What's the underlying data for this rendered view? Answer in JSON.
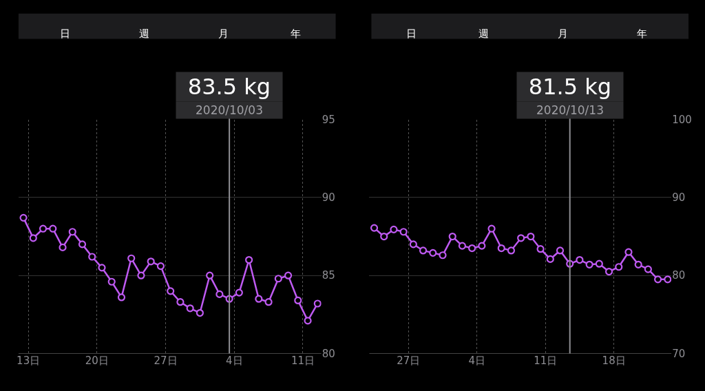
{
  "chart_data": [
    {
      "type": "line",
      "annotations": [
        "日",
        "週",
        "月",
        "年",
        "83.5 kg"
      ],
      "x": [
        "2020-09-12T12:00",
        "2020-09-13T12:00",
        "2020-09-14T12:00",
        "2020-09-15T12:00",
        "2020-09-16T12:00",
        "2020-09-17T12:00",
        "2020-09-18T12:00",
        "2020-09-19T12:00",
        "2020-09-20T12:00",
        "2020-09-21T12:00",
        "2020-09-22T12:00",
        "2020-09-23T12:00",
        "2020-09-24T12:00",
        "2020-09-25T12:00",
        "2020-09-26T12:00",
        "2020-09-27T12:00",
        "2020-09-28T12:00",
        "2020-09-29T12:00",
        "2020-09-30T12:00",
        "2020-10-01T12:00",
        "2020-10-02T12:00",
        "2020-10-03T12:00",
        "2020-10-04T12:00",
        "2020-10-05T12:00",
        "2020-10-06T12:00",
        "2020-10-07T12:00",
        "2020-10-08T12:00",
        "2020-10-09T12:00",
        "2020-10-10T12:00",
        "2020-10-11T12:00",
        "2020-10-12T12:00"
      ],
      "series": [
        {
          "color": "#bf5af2",
          "values": [
            88.7,
            87.4,
            88.0,
            88.0,
            86.8,
            87.8,
            87.0,
            86.2,
            85.5,
            84.6,
            83.6,
            86.1,
            85.0,
            85.9,
            85.6,
            84.0,
            83.3,
            82.9,
            82.6,
            85.0,
            83.8,
            83.5,
            83.9,
            86.0,
            83.5,
            83.3,
            84.8,
            85.0,
            83.4,
            82.1,
            83.2
          ]
        }
      ],
      "xlim": [
        "2020-09-12",
        "2020-10-12T21:00"
      ],
      "xticks": [
        {
          "value": "2020-09-13",
          "label": "13日"
        },
        {
          "value": "2020-09-20",
          "label": "20日"
        },
        {
          "value": "2020-09-27",
          "label": "27日"
        },
        {
          "value": "2020-10-04",
          "label": "4日"
        },
        {
          "value": "2020-10-11",
          "label": "11日"
        }
      ],
      "ylim": [
        80,
        95
      ],
      "yticks": [
        80,
        85,
        90,
        95
      ],
      "ref_lines": [
        {
          "axis": "x",
          "value": "2020-10-03T12:00",
          "label": "2020/10/03",
          "color": "#8e8e93"
        }
      ],
      "grid": true,
      "marker": "circle",
      "line_style": "solid"
    },
    {
      "type": "line",
      "annotations": [
        "日",
        "週",
        "月",
        "年",
        "81.5 kg"
      ],
      "x": [
        "2020-09-23T12:00",
        "2020-09-24T12:00",
        "2020-09-25T12:00",
        "2020-09-26T12:00",
        "2020-09-27T12:00",
        "2020-09-28T12:00",
        "2020-09-29T12:00",
        "2020-09-30T12:00",
        "2020-10-01T12:00",
        "2020-10-02T12:00",
        "2020-10-03T12:00",
        "2020-10-04T12:00",
        "2020-10-05T12:00",
        "2020-10-06T12:00",
        "2020-10-07T12:00",
        "2020-10-08T12:00",
        "2020-10-09T12:00",
        "2020-10-10T12:00",
        "2020-10-11T12:00",
        "2020-10-12T12:00",
        "2020-10-13T12:00",
        "2020-10-14T12:00",
        "2020-10-15T12:00",
        "2020-10-16T12:00",
        "2020-10-17T12:00",
        "2020-10-18T12:00",
        "2020-10-19T12:00",
        "2020-10-20T12:00",
        "2020-10-21T12:00",
        "2020-10-22T12:00",
        "2020-10-23T12:00"
      ],
      "series": [
        {
          "color": "#bf5af2",
          "values": [
            86.1,
            85.0,
            85.9,
            85.6,
            84.0,
            83.2,
            82.9,
            82.6,
            85.0,
            83.8,
            83.5,
            83.8,
            86.0,
            83.5,
            83.2,
            84.8,
            85.0,
            83.4,
            82.1,
            83.2,
            81.5,
            82.0,
            81.4,
            81.5,
            80.5,
            81.1,
            83.0,
            81.4,
            80.8,
            79.5,
            79.5
          ]
        }
      ],
      "xlim": [
        "2020-09-23",
        "2020-10-23T21:00"
      ],
      "xticks": [
        {
          "value": "2020-09-27",
          "label": "27日"
        },
        {
          "value": "2020-10-04",
          "label": "4日"
        },
        {
          "value": "2020-10-11",
          "label": "11日"
        },
        {
          "value": "2020-10-18",
          "label": "18日"
        }
      ],
      "ylim": [
        70,
        100
      ],
      "yticks": [
        70,
        80,
        90,
        100
      ],
      "ref_lines": [
        {
          "axis": "x",
          "value": "2020-10-13T12:00",
          "label": "2020/10/13",
          "color": "#8e8e93"
        }
      ],
      "grid": true,
      "marker": "circle",
      "line_style": "solid"
    }
  ]
}
